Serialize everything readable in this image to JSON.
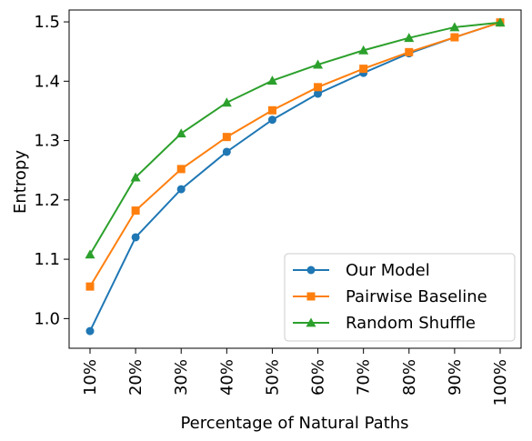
{
  "chart_data": {
    "type": "line",
    "title": "",
    "xlabel": "Percentage of Natural Paths",
    "ylabel": "Entropy",
    "categories": [
      "10%",
      "20%",
      "30%",
      "40%",
      "50%",
      "60%",
      "70%",
      "80%",
      "90%",
      "100%"
    ],
    "yticks": [
      "1.0",
      "1.1",
      "1.2",
      "1.3",
      "1.4",
      "1.5"
    ],
    "ylim": [
      0.95,
      1.52
    ],
    "grid": false,
    "legend_position": "lower-right",
    "series": [
      {
        "name": "Our Model",
        "color": "#1f77b4",
        "marker": "circle",
        "values": [
          0.979,
          1.137,
          1.218,
          1.281,
          1.335,
          1.379,
          1.414,
          1.447,
          1.474,
          1.499
        ]
      },
      {
        "name": "Pairwise Baseline",
        "color": "#ff7f0e",
        "marker": "square",
        "values": [
          1.054,
          1.182,
          1.252,
          1.306,
          1.351,
          1.39,
          1.421,
          1.449,
          1.474,
          1.499
        ]
      },
      {
        "name": "Random Shuffle",
        "color": "#2ca02c",
        "marker": "triangle",
        "values": [
          1.108,
          1.238,
          1.312,
          1.364,
          1.401,
          1.428,
          1.452,
          1.473,
          1.491,
          1.499
        ]
      }
    ]
  }
}
